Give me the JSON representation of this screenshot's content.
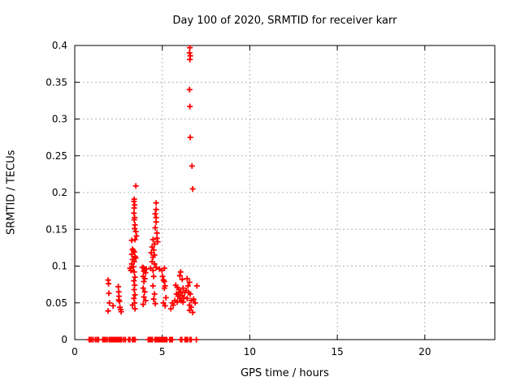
{
  "chart_data": {
    "type": "scatter",
    "title": "Day 100 of 2020, SRMTID for receiver karr",
    "xlabel": "GPS time / hours",
    "ylabel": "SRMTID / TECUs",
    "xlim": [
      0,
      24
    ],
    "ylim": [
      0,
      0.4
    ],
    "grid": true,
    "legend": "none",
    "marker": "plus",
    "marker_color": "#ff0000",
    "axis_color": "#000000",
    "grid_color": "#b5b5b5",
    "xticks": [
      {
        "v": 0,
        "label": "0"
      },
      {
        "v": 5,
        "label": "5"
      },
      {
        "v": 10,
        "label": "10"
      },
      {
        "v": 15,
        "label": "15"
      },
      {
        "v": 20,
        "label": "20"
      }
    ],
    "yticks": [
      {
        "v": 0,
        "label": "0"
      },
      {
        "v": 0.05,
        "label": "0.05"
      },
      {
        "v": 0.1,
        "label": "0.1"
      },
      {
        "v": 0.15,
        "label": "0.15"
      },
      {
        "v": 0.2,
        "label": "0.2"
      },
      {
        "v": 0.25,
        "label": "0.25"
      },
      {
        "v": 0.3,
        "label": "0.3"
      },
      {
        "v": 0.35,
        "label": "0.35"
      },
      {
        "v": 0.4,
        "label": "0.4"
      }
    ],
    "points": [
      [
        0.82,
        0
      ],
      [
        0.88,
        0
      ],
      [
        0.95,
        0
      ],
      [
        1.05,
        0
      ],
      [
        1.18,
        0
      ],
      [
        1.27,
        0
      ],
      [
        1.36,
        0
      ],
      [
        1.6,
        0
      ],
      [
        1.68,
        0
      ],
      [
        1.76,
        0
      ],
      [
        1.85,
        0
      ],
      [
        1.97,
        0
      ],
      [
        2.05,
        0
      ],
      [
        2.12,
        0
      ],
      [
        2.2,
        0
      ],
      [
        2.28,
        0
      ],
      [
        2.36,
        0
      ],
      [
        2.44,
        0
      ],
      [
        2.52,
        0
      ],
      [
        2.6,
        0
      ],
      [
        2.68,
        0
      ],
      [
        2.8,
        0
      ],
      [
        2.89,
        0
      ],
      [
        3.08,
        0
      ],
      [
        3.15,
        0
      ],
      [
        3.3,
        0
      ],
      [
        3.38,
        0
      ],
      [
        3.45,
        0
      ],
      [
        4.2,
        0
      ],
      [
        4.28,
        0
      ],
      [
        4.36,
        0
      ],
      [
        4.44,
        0
      ],
      [
        4.58,
        0
      ],
      [
        4.65,
        0
      ],
      [
        4.72,
        0
      ],
      [
        4.8,
        0
      ],
      [
        4.88,
        0
      ],
      [
        4.95,
        0
      ],
      [
        5.03,
        0
      ],
      [
        5.1,
        0
      ],
      [
        5.18,
        0
      ],
      [
        5.26,
        0
      ],
      [
        5.42,
        0
      ],
      [
        5.5,
        0
      ],
      [
        5.58,
        0
      ],
      [
        6.05,
        0
      ],
      [
        6.12,
        0
      ],
      [
        6.3,
        0
      ],
      [
        6.38,
        0
      ],
      [
        6.45,
        0
      ],
      [
        6.58,
        0
      ],
      [
        6.65,
        0
      ],
      [
        6.95,
        0
      ],
      [
        1.91,
        0.081
      ],
      [
        1.93,
        0.076
      ],
      [
        1.95,
        0.063
      ],
      [
        1.98,
        0.05
      ],
      [
        1.91,
        0.039
      ],
      [
        2.19,
        0.046
      ],
      [
        2.49,
        0.072
      ],
      [
        2.51,
        0.065
      ],
      [
        2.53,
        0.059
      ],
      [
        2.51,
        0.054
      ],
      [
        2.56,
        0.052
      ],
      [
        2.58,
        0.044
      ],
      [
        2.62,
        0.041
      ],
      [
        2.65,
        0.038
      ],
      [
        3.49,
        0.209
      ],
      [
        3.4,
        0.191
      ],
      [
        3.38,
        0.188
      ],
      [
        3.42,
        0.183
      ],
      [
        3.4,
        0.179
      ],
      [
        3.38,
        0.172
      ],
      [
        3.42,
        0.166
      ],
      [
        3.4,
        0.163
      ],
      [
        3.44,
        0.156
      ],
      [
        3.42,
        0.151
      ],
      [
        3.49,
        0.147
      ],
      [
        3.53,
        0.141
      ],
      [
        3.26,
        0.135
      ],
      [
        3.44,
        0.136
      ],
      [
        3.3,
        0.123
      ],
      [
        3.4,
        0.119
      ],
      [
        3.26,
        0.116
      ],
      [
        3.44,
        0.113
      ],
      [
        3.3,
        0.109
      ],
      [
        3.4,
        0.106
      ],
      [
        3.26,
        0.103
      ],
      [
        3.35,
        0.121
      ],
      [
        3.49,
        0.111
      ],
      [
        3.35,
        0.099
      ],
      [
        3.16,
        0.097
      ],
      [
        3.21,
        0.094
      ],
      [
        3.4,
        0.092
      ],
      [
        3.44,
        0.085
      ],
      [
        3.38,
        0.08
      ],
      [
        3.42,
        0.074
      ],
      [
        3.4,
        0.068
      ],
      [
        3.44,
        0.061
      ],
      [
        3.38,
        0.056
      ],
      [
        3.42,
        0.05
      ],
      [
        3.3,
        0.047
      ],
      [
        3.44,
        0.042
      ],
      [
        3.91,
        0.098
      ],
      [
        4.0,
        0.096
      ],
      [
        3.95,
        0.093
      ],
      [
        4.05,
        0.091
      ],
      [
        3.91,
        0.086
      ],
      [
        4.0,
        0.083
      ],
      [
        3.95,
        0.079
      ],
      [
        3.91,
        0.07
      ],
      [
        4.0,
        0.065
      ],
      [
        3.95,
        0.058
      ],
      [
        4.05,
        0.053
      ],
      [
        3.91,
        0.048
      ],
      [
        3.86,
        0.098
      ],
      [
        4.09,
        0.096
      ],
      [
        4.65,
        0.186
      ],
      [
        4.65,
        0.177
      ],
      [
        4.6,
        0.171
      ],
      [
        4.65,
        0.166
      ],
      [
        4.65,
        0.16
      ],
      [
        4.6,
        0.152
      ],
      [
        4.7,
        0.145
      ],
      [
        4.7,
        0.138
      ],
      [
        4.74,
        0.133
      ],
      [
        4.47,
        0.136
      ],
      [
        4.56,
        0.13
      ],
      [
        4.42,
        0.126
      ],
      [
        4.51,
        0.122
      ],
      [
        4.37,
        0.118
      ],
      [
        4.56,
        0.115
      ],
      [
        4.47,
        0.112
      ],
      [
        4.42,
        0.106
      ],
      [
        4.56,
        0.103
      ],
      [
        4.33,
        0.097
      ],
      [
        4.65,
        0.098
      ],
      [
        4.47,
        0.094
      ],
      [
        4.51,
        0.086
      ],
      [
        4.47,
        0.073
      ],
      [
        4.56,
        0.062
      ],
      [
        4.51,
        0.055
      ],
      [
        4.6,
        0.049
      ],
      [
        4.84,
        0.096
      ],
      [
        4.98,
        0.094
      ],
      [
        5.12,
        0.097
      ],
      [
        5.02,
        0.086
      ],
      [
        5.07,
        0.081
      ],
      [
        5.12,
        0.079
      ],
      [
        5.16,
        0.073
      ],
      [
        5.12,
        0.07
      ],
      [
        5.21,
        0.057
      ],
      [
        5.07,
        0.05
      ],
      [
        5.16,
        0.046
      ],
      [
        6.05,
        0.092
      ],
      [
        6.0,
        0.087
      ],
      [
        6.14,
        0.082
      ],
      [
        6.42,
        0.083
      ],
      [
        6.56,
        0.078
      ],
      [
        6.47,
        0.073
      ],
      [
        6.37,
        0.067
      ],
      [
        6.51,
        0.064
      ],
      [
        6.6,
        0.062
      ],
      [
        6.42,
        0.056
      ],
      [
        6.65,
        0.053
      ],
      [
        6.56,
        0.047
      ],
      [
        6.65,
        0.044
      ],
      [
        6.56,
        0.04
      ],
      [
        5.72,
        0.053
      ],
      [
        5.58,
        0.05
      ],
      [
        5.49,
        0.042
      ],
      [
        5.63,
        0.047
      ],
      [
        5.77,
        0.074
      ],
      [
        5.86,
        0.071
      ],
      [
        5.95,
        0.068
      ],
      [
        6.05,
        0.065
      ],
      [
        5.81,
        0.062
      ],
      [
        5.91,
        0.059
      ],
      [
        6.0,
        0.056
      ],
      [
        6.09,
        0.053
      ],
      [
        5.86,
        0.051
      ],
      [
        5.95,
        0.064
      ],
      [
        6.14,
        0.06
      ],
      [
        6.19,
        0.07
      ],
      [
        6.23,
        0.057
      ],
      [
        6.28,
        0.064
      ],
      [
        6.19,
        0.051
      ],
      [
        6.74,
        0.037
      ],
      [
        6.79,
        0.055
      ],
      [
        6.88,
        0.05
      ],
      [
        6.98,
        0.073
      ],
      [
        6.58,
        0.397
      ],
      [
        6.56,
        0.39
      ],
      [
        6.6,
        0.386
      ],
      [
        6.58,
        0.381
      ],
      [
        6.56,
        0.34
      ],
      [
        6.58,
        0.317
      ],
      [
        6.6,
        0.275
      ],
      [
        6.7,
        0.236
      ],
      [
        6.74,
        0.205
      ]
    ]
  }
}
